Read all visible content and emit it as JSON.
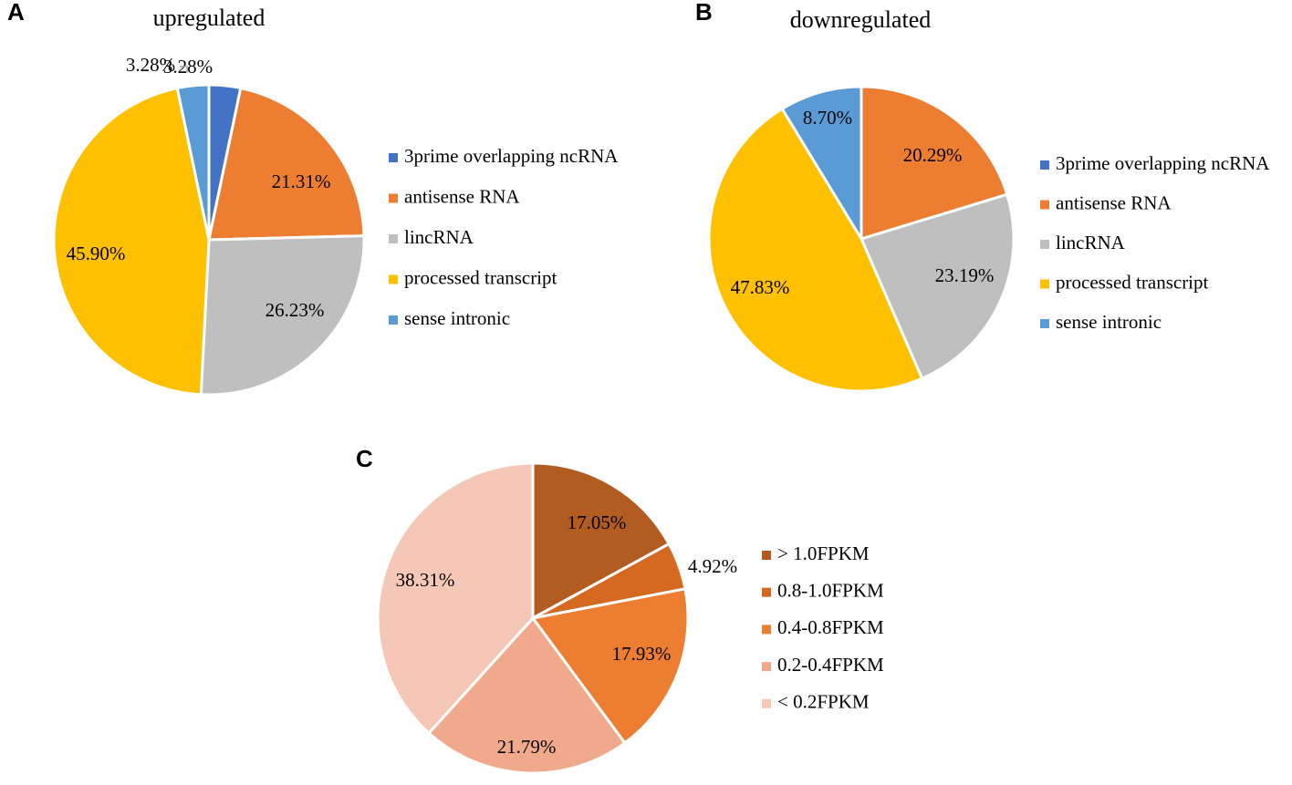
{
  "panels": {
    "a": "A",
    "b": "B",
    "c": "C"
  },
  "chart_data": [
    {
      "type": "pie",
      "panel": "A",
      "title": "upregulated",
      "categories": [
        "3prime overlapping ncRNA",
        "antisense RNA",
        "lincRNA",
        "processed transcript",
        "sense intronic"
      ],
      "values": [
        3.28,
        21.31,
        26.23,
        45.9,
        3.28
      ],
      "labels": [
        "3.28%",
        "21.31%",
        "26.23%",
        "45.90%",
        "3.28%"
      ],
      "colors": [
        "#4472C4",
        "#ED7D31",
        "#BFBFBF",
        "#FFC000",
        "#5B9BD5"
      ],
      "legend": "right"
    },
    {
      "type": "pie",
      "panel": "B",
      "title": "downregulated",
      "categories": [
        "3prime overlapping ncRNA",
        "antisense RNA",
        "lincRNA",
        "processed transcript",
        "sense intronic"
      ],
      "values": [
        0,
        20.29,
        23.19,
        47.83,
        8.7
      ],
      "labels": [
        "",
        "20.29%",
        "23.19%",
        "47.83%",
        "8.70%"
      ],
      "colors": [
        "#4472C4",
        "#ED7D31",
        "#BFBFBF",
        "#FFC000",
        "#5B9BD5"
      ],
      "legend": "right"
    },
    {
      "type": "pie",
      "panel": "C",
      "title": "",
      "categories": [
        "> 1.0FPKM",
        "0.8-1.0FPKM",
        "0.4-0.8FPKM",
        "0.2-0.4FPKM",
        "< 0.2FPKM"
      ],
      "values": [
        17.05,
        4.92,
        17.93,
        21.79,
        38.31
      ],
      "labels": [
        "17.05%",
        "4.92%",
        "17.93%",
        "21.79%",
        "38.31%"
      ],
      "colors": [
        "#B35C22",
        "#D4691F",
        "#ED7D31",
        "#F0A98A",
        "#F4C7B7"
      ],
      "legend": "right"
    }
  ]
}
